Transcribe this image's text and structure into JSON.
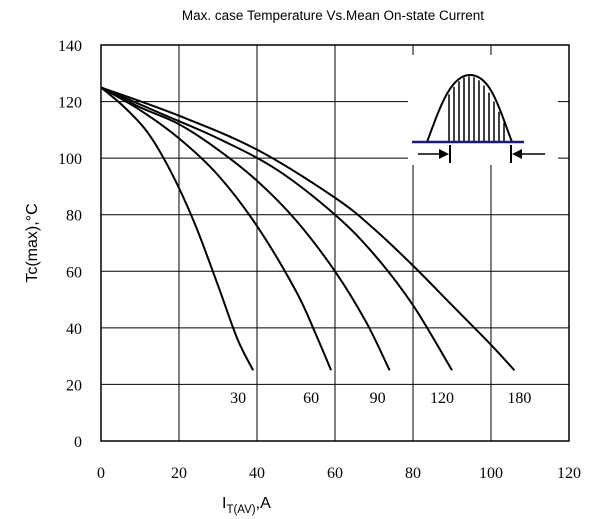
{
  "chart_data": {
    "type": "line",
    "title": "Max. case Temperature Vs.Mean On-state Current",
    "xlabel_main": "I",
    "xlabel_sub": "T(AV)",
    "xlabel_unit": ",A",
    "ylabel": "Tc(max),°C",
    "xlim": [
      0,
      120
    ],
    "ylim": [
      0,
      140
    ],
    "x_ticks": [
      "0",
      "20",
      "40",
      "60",
      "80",
      "100",
      "120"
    ],
    "y_ticks": [
      "0",
      "20",
      "40",
      "60",
      "80",
      "100",
      "120",
      "140"
    ],
    "grid": true,
    "series": [
      {
        "name": "30",
        "x": [
          0,
          6,
          12,
          18,
          24,
          30,
          35,
          39
        ],
        "y": [
          125,
          118,
          109,
          95,
          77,
          55,
          36,
          25
        ]
      },
      {
        "name": "60",
        "x": [
          0,
          10,
          20,
          30,
          40,
          50,
          55,
          59
        ],
        "y": [
          125,
          117,
          107,
          94,
          76,
          53,
          38,
          25
        ]
      },
      {
        "name": "90",
        "x": [
          0,
          10,
          20,
          30,
          40,
          50,
          60,
          68,
          74
        ],
        "y": [
          125,
          118,
          112,
          103,
          92,
          78,
          60,
          42,
          25
        ]
      },
      {
        "name": "120",
        "x": [
          0,
          15,
          30,
          45,
          60,
          70,
          80,
          90
        ],
        "y": [
          125,
          116,
          107,
          96,
          80,
          66,
          48,
          25
        ]
      },
      {
        "name": "180",
        "x": [
          0,
          20,
          40,
          60,
          70,
          80,
          90,
          100,
          106
        ],
        "y": [
          125,
          115,
          103,
          86,
          75,
          62,
          48,
          34,
          25
        ]
      }
    ]
  }
}
